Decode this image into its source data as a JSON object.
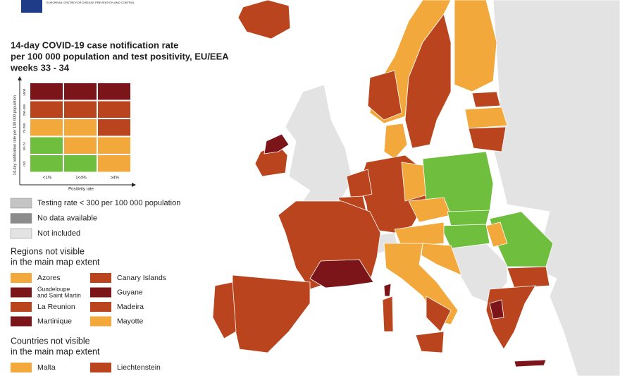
{
  "header": {
    "org": "EUROPEAN CENTRE FOR DISEASE PREVENTION AND CONTROL",
    "title": [
      "14-day COVID-19 case notification rate",
      "per 100 000 population and test positivity, EU/EEA",
      "weeks 33 - 34"
    ]
  },
  "matrix": {
    "y_label": "14-day notification rate per 100 000 population",
    "rows": [
      "≥500",
      "200-499",
      "75-200",
      "50-74",
      "<50"
    ],
    "x_label": "Positivity rate",
    "columns": [
      "<1%",
      "1<4%",
      "≥4%"
    ],
    "cells": [
      [
        "#7b1519",
        "#7b1519",
        "#7b1519"
      ],
      [
        "#b9441d",
        "#b9441d",
        "#b9441d"
      ],
      [
        "#f2a83a",
        "#f2a83a",
        "#b9441d"
      ],
      [
        "#6fbe3e",
        "#f2a83a",
        "#f2a83a"
      ],
      [
        "#6fbe3e",
        "#6fbe3e",
        "#f2a83a"
      ]
    ]
  },
  "status": [
    {
      "label": "Testing rate < 300 per 100 000 population",
      "color": "#c4c4c4"
    },
    {
      "label": "No data available",
      "color": "#8c8c8c"
    },
    {
      "label": "Not included",
      "color": "#e3e3e3"
    }
  ],
  "regions": {
    "heading": [
      "Regions not visible",
      "in the main map extent"
    ],
    "items": [
      {
        "label": [
          "Azores"
        ],
        "color": "#f2a83a"
      },
      {
        "label": [
          "Canary Islands"
        ],
        "color": "#b9441d"
      },
      {
        "label": [
          "Guadeloupe",
          "and Saint Martin"
        ],
        "color": "#7b1519"
      },
      {
        "label": [
          "Guyane"
        ],
        "color": "#7b1519"
      },
      {
        "label": [
          "La Reunion"
        ],
        "color": "#b9441d"
      },
      {
        "label": [
          "Madeira"
        ],
        "color": "#b9441d"
      },
      {
        "label": [
          "Martinique"
        ],
        "color": "#7b1519"
      },
      {
        "label": [
          "Mayotte"
        ],
        "color": "#f2a83a"
      }
    ]
  },
  "countries": {
    "heading": [
      "Countries not visible",
      "in the main map extent"
    ],
    "items": [
      {
        "label": [
          "Malta"
        ],
        "color": "#f2a83a"
      },
      {
        "label": [
          "Liechtenstein"
        ],
        "color": "#b9441d"
      }
    ]
  }
}
